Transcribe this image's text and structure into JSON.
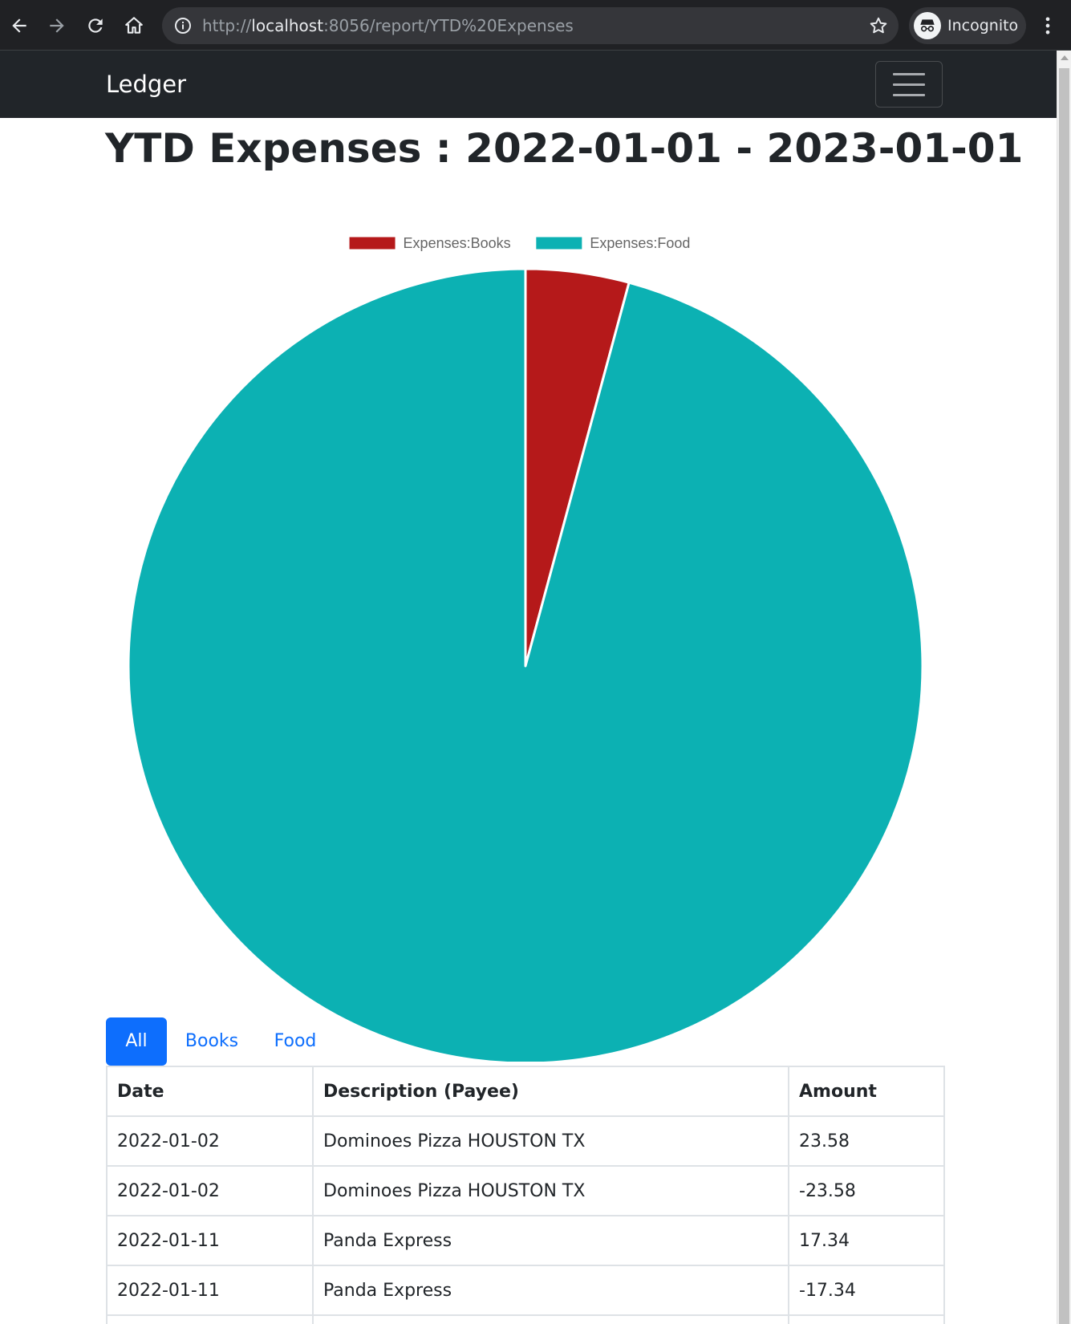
{
  "browser": {
    "url_scheme": "http://",
    "url_host": "localhost",
    "url_rest": ":8056/report/YTD%20Expenses",
    "profile_label": "Incognito",
    "icons": {
      "back": "arrow-left-icon",
      "forward": "arrow-right-icon",
      "reload": "reload-icon",
      "home": "home-icon",
      "info": "info-icon",
      "bookmark": "star-icon",
      "incognito": "incognito-icon",
      "menu": "kebab-menu-icon"
    }
  },
  "navbar": {
    "brand": "Ledger",
    "toggler_icon": "hamburger-menu-icon"
  },
  "page": {
    "title": "YTD Expenses : 2022-01-01 - 2023-01-01"
  },
  "chart_data": {
    "type": "pie",
    "legend_placement": "top",
    "series": [
      {
        "name": "Expenses:Books",
        "value": 4.2,
        "color": "#b5191a"
      },
      {
        "name": "Expenses:Food",
        "value": 95.8,
        "color": "#0cb1b3"
      }
    ]
  },
  "tabs": [
    {
      "label": "All",
      "active": true
    },
    {
      "label": "Books",
      "active": false
    },
    {
      "label": "Food",
      "active": false
    }
  ],
  "table": {
    "columns": [
      "Date",
      "Description (Payee)",
      "Amount"
    ],
    "rows": [
      [
        "2022-01-02",
        "Dominoes Pizza HOUSTON TX",
        "23.58"
      ],
      [
        "2022-01-02",
        "Dominoes Pizza HOUSTON TX",
        "-23.58"
      ],
      [
        "2022-01-11",
        "Panda Express",
        "17.34"
      ],
      [
        "2022-01-11",
        "Panda Express",
        "-17.34"
      ],
      [
        "",
        "",
        ""
      ]
    ]
  },
  "colors": {
    "navbar_bg": "#212529",
    "primary": "#0d6efd",
    "chrome_bg": "#202124"
  }
}
